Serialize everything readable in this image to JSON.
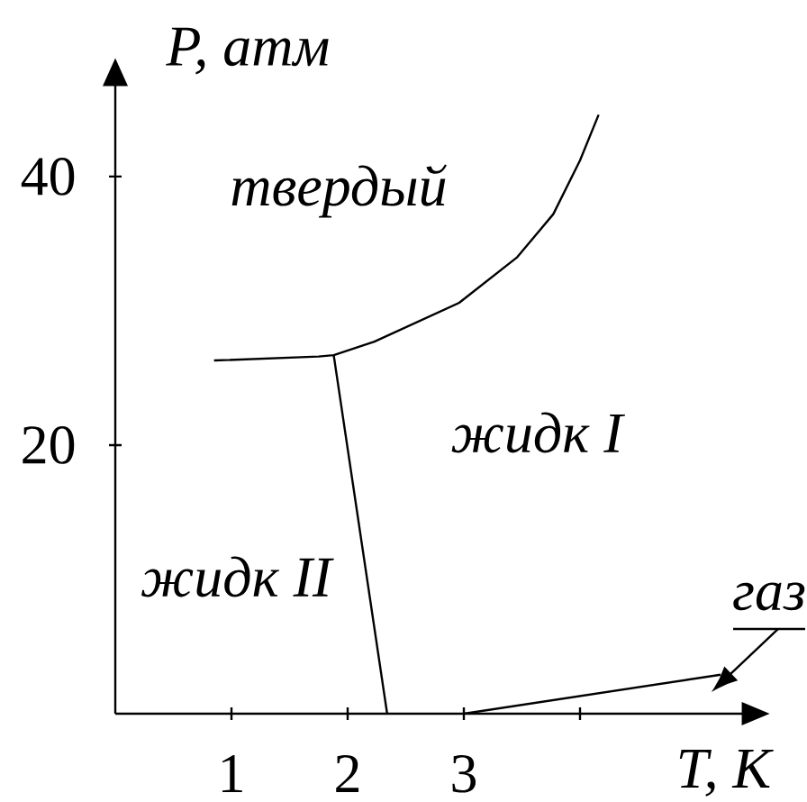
{
  "chart_data": {
    "type": "line",
    "xlabel": "T, K",
    "ylabel": "P, атм",
    "xlim": [
      0,
      5.4
    ],
    "ylim": [
      0,
      46.8
    ],
    "xticks": [
      1,
      2,
      3,
      {
        "value": 4,
        "label": null
      }
    ],
    "yticks": [
      20,
      40
    ],
    "line_style": "solid",
    "series": [
      {
        "color": "#000000",
        "x": [
          0.85,
          1.75,
          1.88,
          2.23,
          2.96,
          3.46,
          3.77,
          4.0,
          4.16
        ],
        "values": [
          26.3,
          26.6,
          26.7,
          27.7,
          30.6,
          34.0,
          37.2,
          41.2,
          44.6
        ]
      },
      {
        "color": "#000000",
        "x": [
          1.88,
          2.34
        ],
        "values": [
          26.7,
          0
        ]
      },
      {
        "color": "#000000",
        "x": [
          3.0,
          5.21
        ],
        "values": [
          0,
          2.9
        ]
      }
    ],
    "annotations": [
      "твердый",
      "жидк I",
      "жидк II",
      "газ"
    ]
  }
}
